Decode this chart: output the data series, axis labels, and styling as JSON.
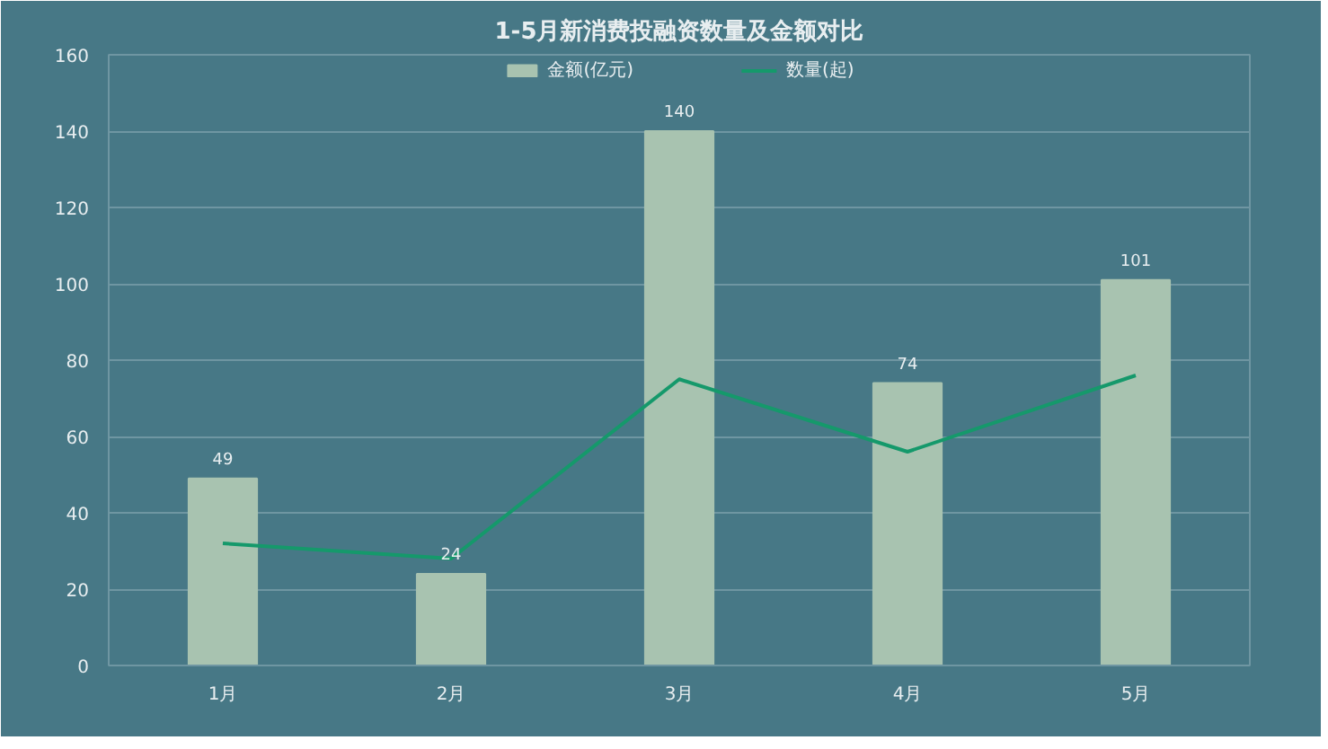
{
  "chart_data": {
    "type": "bar",
    "title": "1-5月新消费投融资数量及金额对比",
    "categories": [
      "1月",
      "2月",
      "3月",
      "4月",
      "5月"
    ],
    "series": [
      {
        "name": "金额(亿元)",
        "color": "#a8c3b0",
        "values": [
          49,
          24,
          140,
          74,
          101
        ],
        "data_labels": true
      },
      {
        "name": "数量(起)",
        "type": "line",
        "color": "#15996b",
        "values": [
          32,
          28,
          75,
          56,
          76
        ]
      }
    ],
    "ylim": [
      0,
      160
    ],
    "yticks": [
      0,
      20,
      40,
      60,
      80,
      100,
      120,
      140,
      160
    ],
    "grid": "y",
    "legend": "top",
    "marker": "none"
  }
}
